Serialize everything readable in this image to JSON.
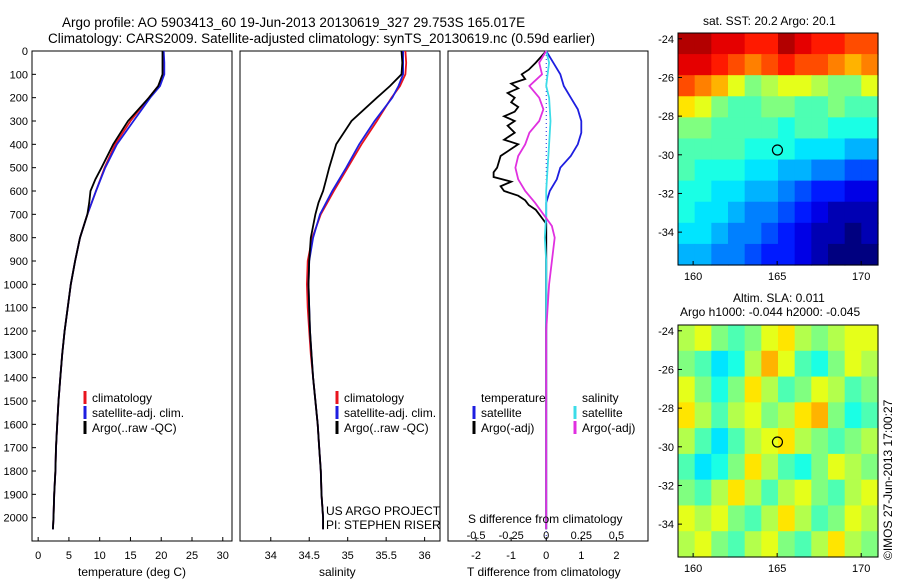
{
  "header": {
    "line1": "Argo profile: AO 5903413_60 19-Jun-2013 20130619_327 29.753S 165.017E",
    "line2": "Climatology: CARS2009. Satellite-adjusted climatology: synTS_20130619.nc (0.59d earlier)"
  },
  "colors": {
    "climatology": "#e8141e",
    "satellite": "#1e1ee0",
    "argo": "#000000",
    "sal_satellite": "#3cdce8",
    "sal_argo": "#e030e0"
  },
  "chart_data": [
    {
      "id": "temperature",
      "type": "line",
      "xlabel": "temperature (deg C)",
      "xlim": [
        -1,
        31.5
      ],
      "xticks": [
        0,
        5,
        10,
        15,
        20,
        25,
        30
      ],
      "xtick_labels": [
        "0",
        "5",
        "10",
        "15",
        "20",
        "25",
        "30"
      ],
      "ylim": [
        2100,
        0
      ],
      "yticks": [
        0,
        100,
        200,
        300,
        400,
        500,
        600,
        700,
        800,
        900,
        1000,
        1100,
        1200,
        1300,
        1400,
        1500,
        1600,
        1700,
        1800,
        1900,
        2000
      ],
      "legend": [
        "climatology",
        "satellite-adj. clim.",
        "Argo(..raw -QC)"
      ],
      "series": [
        {
          "name": "climatology",
          "color": "#e8141e",
          "depth": [
            0,
            50,
            100,
            150,
            200,
            300,
            400,
            500,
            600,
            700,
            800,
            900,
            1000,
            1100,
            1200,
            1300,
            1400,
            1500,
            1600,
            1700,
            1800,
            1900,
            2000,
            2050
          ],
          "values": [
            20.3,
            20.4,
            20.4,
            19.5,
            18.0,
            15.0,
            12.5,
            10.8,
            9.4,
            8.0,
            6.8,
            6.0,
            5.3,
            4.8,
            4.3,
            3.9,
            3.6,
            3.3,
            3.1,
            2.9,
            2.8,
            2.6,
            2.5,
            2.4
          ]
        },
        {
          "name": "satellite-adj. clim.",
          "color": "#1e1ee0",
          "depth": [
            0,
            50,
            100,
            150,
            200,
            300,
            400,
            500,
            600,
            700,
            800,
            900,
            1000,
            1100,
            1200,
            1300,
            1400,
            1500,
            1600,
            1700,
            1800,
            1900,
            2000,
            2050
          ],
          "values": [
            20.4,
            20.5,
            20.5,
            19.8,
            18.2,
            15.5,
            12.8,
            10.9,
            9.4,
            8.0,
            6.8,
            6.0,
            5.3,
            4.8,
            4.3,
            3.9,
            3.6,
            3.3,
            3.1,
            2.9,
            2.8,
            2.6,
            2.5,
            2.4
          ]
        },
        {
          "name": "Argo(..raw -QC)",
          "color": "#000000",
          "depth": [
            0,
            50,
            100,
            150,
            200,
            300,
            400,
            500,
            550,
            600,
            650,
            700,
            800,
            900,
            1000,
            1100,
            1200,
            1300,
            1400,
            1500,
            1600,
            1700,
            1800,
            1900,
            2000,
            2050
          ],
          "values": [
            20.2,
            20.2,
            20.2,
            19.5,
            18.0,
            14.6,
            12.2,
            10.3,
            9.3,
            8.5,
            8.3,
            8.0,
            6.8,
            6.0,
            5.3,
            4.8,
            4.3,
            3.9,
            3.6,
            3.3,
            3.1,
            2.9,
            2.8,
            2.6,
            2.5,
            2.4
          ]
        }
      ]
    },
    {
      "id": "salinity",
      "type": "line",
      "xlabel": "salinity",
      "xlim": [
        33.6,
        36.2
      ],
      "xticks": [
        34,
        34.5,
        35,
        35.5,
        36
      ],
      "xtick_labels": [
        "34",
        "34.5",
        "35",
        "35.5",
        "36"
      ],
      "ylim": [
        2100,
        0
      ],
      "legend": [
        "climatology",
        "satellite-adj. clim.",
        "Argo(..raw -QC)"
      ],
      "annotation": [
        "US ARGO PROJECT",
        "PI: STEPHEN RISER"
      ],
      "series": [
        {
          "name": "climatology",
          "color": "#e8141e",
          "depth": [
            0,
            50,
            100,
            150,
            200,
            300,
            400,
            500,
            600,
            700,
            800,
            900,
            1000,
            1100,
            1200,
            1300,
            1400,
            1500,
            1600,
            1700,
            1800,
            1900,
            2000,
            2050
          ],
          "values": [
            35.75,
            35.76,
            35.75,
            35.68,
            35.57,
            35.38,
            35.18,
            35.0,
            34.82,
            34.65,
            34.54,
            34.48,
            34.47,
            34.48,
            34.5,
            34.52,
            34.55,
            34.58,
            34.61,
            34.63,
            34.65,
            34.66,
            34.68,
            34.68
          ]
        },
        {
          "name": "satellite-adj. clim.",
          "color": "#1e1ee0",
          "depth": [
            0,
            50,
            100,
            150,
            200,
            300,
            400,
            500,
            600,
            700,
            800,
            900,
            1000,
            1100,
            1200,
            1300,
            1400,
            1500,
            1600,
            1700,
            1800,
            1900,
            2000,
            2050
          ],
          "values": [
            35.72,
            35.72,
            35.72,
            35.66,
            35.58,
            35.35,
            35.15,
            34.98,
            34.8,
            34.64,
            34.55,
            34.5,
            34.49,
            34.5,
            34.51,
            34.53,
            34.55,
            34.58,
            34.61,
            34.63,
            34.65,
            34.66,
            34.68,
            34.68
          ]
        },
        {
          "name": "Argo(..raw -QC)",
          "color": "#000000",
          "depth": [
            0,
            50,
            100,
            150,
            200,
            300,
            400,
            500,
            550,
            600,
            650,
            700,
            800,
            900,
            1000,
            1100,
            1200,
            1300,
            1400,
            1500,
            1600,
            1700,
            1800,
            1900,
            2000,
            2050
          ],
          "values": [
            35.7,
            35.71,
            35.7,
            35.55,
            35.38,
            35.05,
            34.85,
            34.76,
            34.72,
            34.68,
            34.62,
            34.58,
            34.52,
            34.5,
            34.49,
            34.5,
            34.51,
            34.53,
            34.55,
            34.58,
            34.61,
            34.63,
            34.65,
            34.66,
            34.68,
            34.68
          ]
        }
      ]
    },
    {
      "id": "difference",
      "type": "line",
      "xlabel": "T difference from climatology",
      "xlabel_top": "S difference from climatology",
      "xlim": [
        -2.8,
        2.9
      ],
      "xticks": [
        -2,
        -1,
        0,
        1,
        2
      ],
      "xtick_labels": [
        "-2",
        "-1",
        "0",
        "1",
        "2"
      ],
      "s_ticks": [
        -0.5,
        -0.25,
        0,
        0.25,
        0.5
      ],
      "s_tick_labels": [
        "-0.5",
        "-0.25",
        "0",
        "0.25",
        "0.5"
      ],
      "s_scale": 4,
      "ylim": [
        2100,
        0
      ],
      "legend_temperature": {
        "title": "temperature",
        "items": [
          "satellite",
          "Argo(-adj)"
        ]
      },
      "legend_salinity": {
        "title": "salinity",
        "items": [
          "satellite",
          "Argo(-adj)"
        ]
      },
      "series": [
        {
          "name": "T satellite",
          "color": "#1e1ee0",
          "depth": [
            0,
            50,
            100,
            150,
            200,
            250,
            300,
            350,
            400,
            450,
            500,
            550,
            600,
            650,
            700,
            750,
            800,
            900,
            1000,
            1200,
            1400,
            1600,
            1800,
            2000,
            2050
          ],
          "values": [
            0.0,
            0.2,
            0.4,
            0.5,
            0.7,
            0.9,
            1.0,
            1.0,
            0.9,
            0.7,
            0.4,
            0.3,
            0.1,
            0.0,
            0.0,
            0.0,
            0.0,
            0.0,
            0.0,
            0.0,
            0.0,
            0.0,
            0.0,
            0.0,
            0.0
          ]
        },
        {
          "name": "T Argo(-adj)",
          "color": "#000000",
          "depth": [
            0,
            50,
            80,
            100,
            120,
            140,
            160,
            180,
            200,
            220,
            240,
            260,
            280,
            300,
            320,
            350,
            380,
            400,
            450,
            500,
            520,
            540,
            560,
            580,
            600,
            620,
            640,
            660,
            680,
            700,
            720,
            740,
            780,
            800,
            900,
            1000,
            1200,
            1400,
            1600,
            1800,
            2000,
            2050
          ],
          "values": [
            0.0,
            -0.3,
            -0.5,
            -0.7,
            -0.6,
            -1.0,
            -0.8,
            -1.1,
            -0.9,
            -1.0,
            -0.8,
            -0.9,
            -1.2,
            -0.9,
            -1.1,
            -0.9,
            -1.2,
            -0.8,
            -1.3,
            -1.4,
            -1.5,
            -1.5,
            -1.0,
            -1.3,
            -1.2,
            -0.8,
            -0.6,
            -0.5,
            -0.3,
            -0.2,
            -0.1,
            0.0,
            0.0,
            0.0,
            0.0,
            0.0,
            0.0,
            0.0,
            0.0,
            0.0,
            0.0,
            0.0
          ]
        },
        {
          "name": "S satellite",
          "color": "#3cdce8",
          "depth": [
            0,
            50,
            100,
            150,
            200,
            300,
            400,
            500,
            600,
            700,
            800,
            900,
            1000,
            1200,
            1400,
            1600,
            1800,
            2000,
            2050
          ],
          "values": [
            0.0,
            0.02,
            0.01,
            0.0,
            0.02,
            0.03,
            0.02,
            0.01,
            0.0,
            0.0,
            -0.01,
            0.0,
            0.0,
            0.0,
            0.0,
            0.0,
            0.0,
            0.0,
            0.0
          ]
        },
        {
          "name": "S Argo(-adj)",
          "color": "#e030e0",
          "depth": [
            0,
            50,
            100,
            150,
            200,
            250,
            300,
            350,
            400,
            450,
            500,
            550,
            600,
            650,
            700,
            750,
            800,
            850,
            900,
            950,
            1000,
            1100,
            1200,
            1400,
            1600,
            1800,
            2000,
            2050
          ],
          "values": [
            0.0,
            -0.05,
            -0.03,
            -0.12,
            -0.05,
            -0.02,
            -0.05,
            -0.12,
            -0.15,
            -0.2,
            -0.22,
            -0.2,
            -0.15,
            -0.08,
            -0.02,
            0.04,
            0.06,
            0.05,
            0.04,
            0.03,
            0.02,
            0.01,
            0.0,
            0.0,
            0.0,
            0.0,
            0.0,
            0.0
          ]
        }
      ]
    },
    {
      "id": "sst_map",
      "type": "heatmap",
      "title": "sat. SST: 20.2  Argo: 20.1",
      "xlim": [
        159.1,
        171.0
      ],
      "ylim": [
        -35.7,
        -23.7
      ],
      "xticks": [
        160,
        165,
        170
      ],
      "yticks": [
        -24,
        -26,
        -28,
        -30,
        -32,
        -34
      ],
      "ytick_labels": [
        "-24",
        "-26",
        "-28",
        "-30",
        "-32",
        "-34"
      ],
      "marker": {
        "lon": 165.017,
        "lat": -29.753
      },
      "levels": [
        [
          0.95,
          0.95,
          0.9,
          0.9,
          0.85,
          0.85,
          0.95,
          0.9,
          0.85,
          0.85,
          0.8,
          0.8
        ],
        [
          0.9,
          0.9,
          0.85,
          0.8,
          0.75,
          0.8,
          0.85,
          0.8,
          0.8,
          0.75,
          0.7,
          0.75
        ],
        [
          0.8,
          0.75,
          0.7,
          0.6,
          0.5,
          0.55,
          0.6,
          0.6,
          0.55,
          0.5,
          0.5,
          0.6
        ],
        [
          0.65,
          0.6,
          0.5,
          0.45,
          0.45,
          0.5,
          0.5,
          0.45,
          0.45,
          0.5,
          0.45,
          0.45
        ],
        [
          0.5,
          0.5,
          0.45,
          0.45,
          0.45,
          0.45,
          0.4,
          0.45,
          0.45,
          0.4,
          0.4,
          0.4
        ],
        [
          0.45,
          0.45,
          0.45,
          0.45,
          0.4,
          0.4,
          0.4,
          0.35,
          0.35,
          0.35,
          0.3,
          0.3
        ],
        [
          0.45,
          0.4,
          0.4,
          0.4,
          0.35,
          0.35,
          0.3,
          0.3,
          0.25,
          0.25,
          0.2,
          0.2
        ],
        [
          0.4,
          0.4,
          0.35,
          0.35,
          0.3,
          0.3,
          0.25,
          0.2,
          0.15,
          0.15,
          0.1,
          0.1
        ],
        [
          0.4,
          0.35,
          0.35,
          0.3,
          0.25,
          0.25,
          0.2,
          0.15,
          0.1,
          0.05,
          0.05,
          0.05
        ],
        [
          0.35,
          0.35,
          0.3,
          0.25,
          0.25,
          0.2,
          0.15,
          0.1,
          0.05,
          0.05,
          0.0,
          0.05
        ],
        [
          0.3,
          0.3,
          0.25,
          0.25,
          0.2,
          0.15,
          0.15,
          0.1,
          0.05,
          0.0,
          0.0,
          0.0
        ]
      ]
    },
    {
      "id": "sla_map",
      "type": "heatmap",
      "title": "Altim. SLA: 0.011",
      "subtitle": "Argo h1000: -0.044 h2000: -0.045",
      "xlim": [
        159.1,
        171.0
      ],
      "ylim": [
        -35.7,
        -23.7
      ],
      "xticks": [
        160,
        165,
        170
      ],
      "yticks": [
        -24,
        -26,
        -28,
        -30,
        -32,
        -34
      ],
      "ytick_labels": [
        "-24",
        "-26",
        "-28",
        "-30",
        "-32",
        "-34"
      ],
      "marker": {
        "lon": 165.017,
        "lat": -29.753
      },
      "levels": [
        [
          0.55,
          0.6,
          0.5,
          0.45,
          0.5,
          0.6,
          0.65,
          0.55,
          0.5,
          0.55,
          0.6,
          0.6
        ],
        [
          0.5,
          0.45,
          0.35,
          0.4,
          0.55,
          0.7,
          0.6,
          0.45,
          0.4,
          0.5,
          0.6,
          0.55
        ],
        [
          0.6,
          0.5,
          0.4,
          0.5,
          0.65,
          0.55,
          0.45,
          0.5,
          0.6,
          0.55,
          0.45,
          0.5
        ],
        [
          0.65,
          0.55,
          0.45,
          0.55,
          0.6,
          0.5,
          0.55,
          0.65,
          0.7,
          0.5,
          0.4,
          0.45
        ],
        [
          0.55,
          0.45,
          0.35,
          0.45,
          0.55,
          0.6,
          0.65,
          0.55,
          0.5,
          0.45,
          0.5,
          0.55
        ],
        [
          0.45,
          0.35,
          0.4,
          0.5,
          0.65,
          0.55,
          0.45,
          0.4,
          0.5,
          0.6,
          0.55,
          0.5
        ],
        [
          0.5,
          0.45,
          0.55,
          0.65,
          0.55,
          0.45,
          0.55,
          0.6,
          0.5,
          0.45,
          0.55,
          0.6
        ],
        [
          0.6,
          0.55,
          0.6,
          0.5,
          0.45,
          0.55,
          0.65,
          0.55,
          0.45,
          0.5,
          0.6,
          0.55
        ],
        [
          0.55,
          0.6,
          0.5,
          0.45,
          0.55,
          0.6,
          0.5,
          0.45,
          0.55,
          0.65,
          0.55,
          0.5
        ]
      ]
    }
  ],
  "footer": {
    "vertical": "©IMOS 27-Jun-2013 17:00:27"
  }
}
